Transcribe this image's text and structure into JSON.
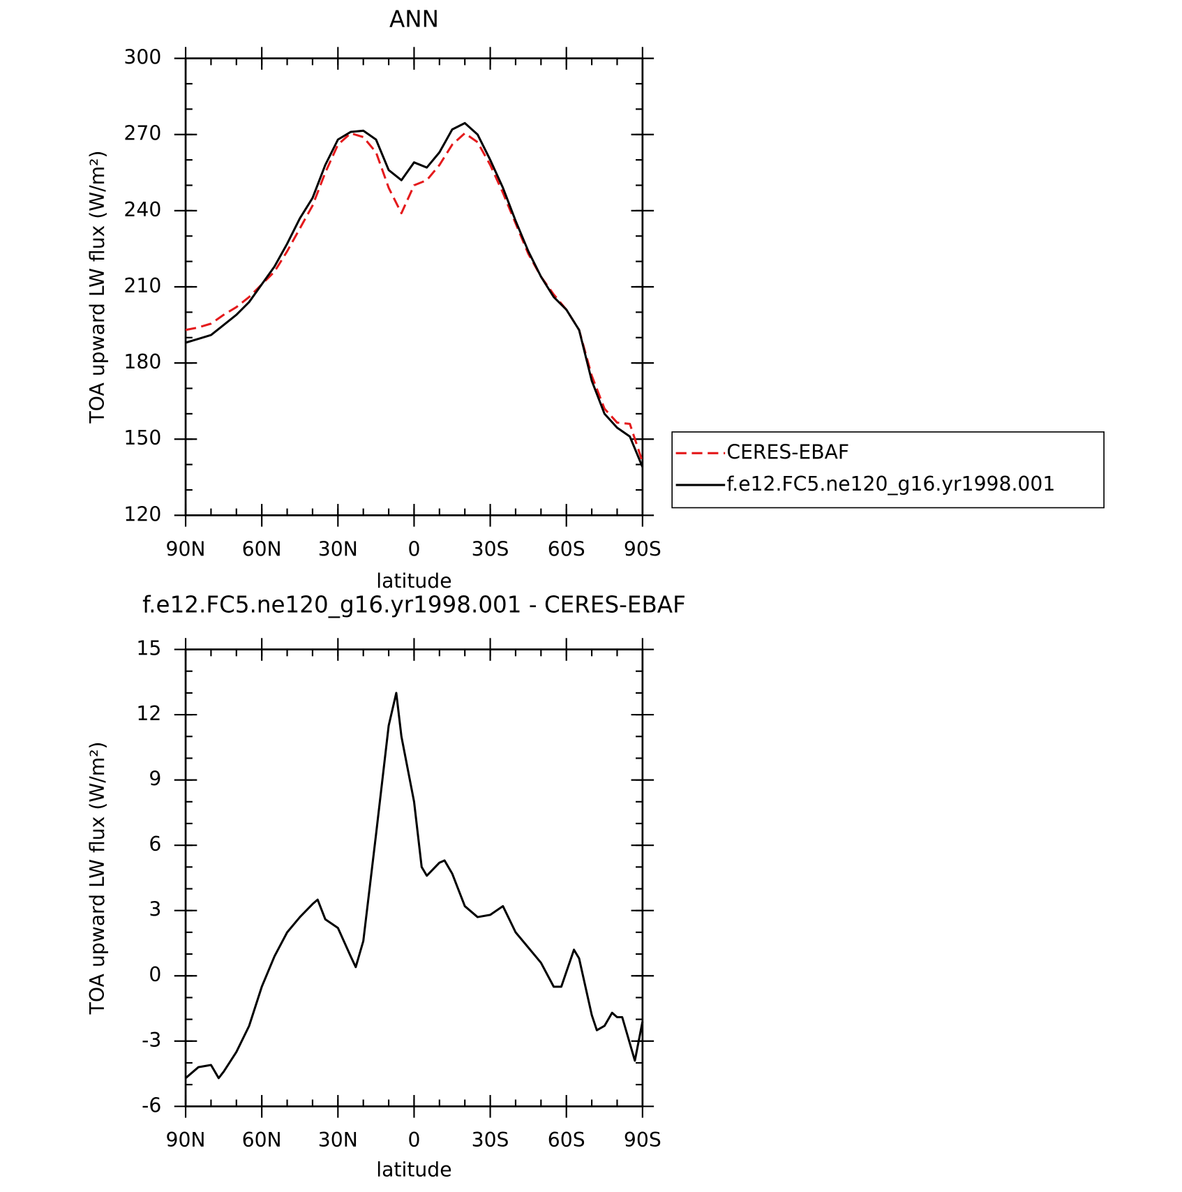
{
  "chart_data": [
    {
      "type": "line",
      "title": "ANN",
      "xlabel": "latitude",
      "ylabel": "TOA upward LW flux (W/m²)",
      "x": [
        90,
        85,
        80,
        75,
        70,
        65,
        60,
        55,
        50,
        45,
        40,
        35,
        30,
        25,
        20,
        15,
        10,
        5,
        0,
        -5,
        -10,
        -15,
        -20,
        -25,
        -30,
        -35,
        -40,
        -45,
        -50,
        -55,
        -60,
        -65,
        -70,
        -75,
        -80,
        -85,
        -90
      ],
      "series": [
        {
          "name": "CERES-EBAF",
          "color": "#e41a1c",
          "style": "dashed",
          "values": [
            193,
            194,
            195.5,
            199,
            202,
            206,
            211,
            216,
            224,
            233,
            242,
            255,
            266,
            270.5,
            269,
            263,
            249,
            239,
            250,
            252,
            258,
            266,
            270.5,
            267,
            258,
            247,
            235,
            223,
            214,
            207,
            201,
            193,
            175,
            162,
            156.5,
            156,
            141
          ]
        },
        {
          "name": "f.e12.FC5.ne120_g16.yr1998.001",
          "color": "#000000",
          "style": "solid",
          "values": [
            188,
            189.5,
            191,
            195,
            199,
            204,
            211,
            218,
            227,
            237,
            245,
            258,
            268,
            271,
            271.5,
            268,
            256,
            252,
            259,
            257,
            263,
            272,
            274.5,
            270,
            260,
            249,
            236,
            224,
            214,
            206,
            201,
            193,
            173,
            160,
            154.5,
            151,
            139
          ]
        }
      ],
      "xlim": [
        90,
        -90
      ],
      "xticks": [
        {
          "value": 90,
          "label": "90N"
        },
        {
          "value": 60,
          "label": "60N"
        },
        {
          "value": 30,
          "label": "30N"
        },
        0,
        {
          "value": -30,
          "label": "30S"
        },
        {
          "value": -60,
          "label": "60S"
        },
        {
          "value": -90,
          "label": "90S"
        }
      ],
      "ylim": [
        120,
        300
      ],
      "yticks": [
        120,
        150,
        180,
        210,
        240,
        270,
        300
      ],
      "legend": "right"
    },
    {
      "type": "line",
      "title": "f.e12.FC5.ne120_g16.yr1998.001 - CERES-EBAF",
      "xlabel": "latitude",
      "ylabel": "TOA upward LW flux (W/m²)",
      "x": [
        90,
        85,
        80,
        77,
        75,
        70,
        65,
        60,
        55,
        50,
        45,
        40,
        38,
        35,
        30,
        25,
        23,
        20,
        15,
        10,
        7,
        5,
        0,
        -3,
        -5,
        -10,
        -12,
        -15,
        -20,
        -25,
        -30,
        -35,
        -40,
        -45,
        -50,
        -55,
        -58,
        -63,
        -65,
        -70,
        -72,
        -75,
        -78,
        -80,
        -82,
        -87,
        -90
      ],
      "series": [
        {
          "name": "f.e12.FC5.ne120_g16.yr1998.001 - CERES-EBAF",
          "color": "#000000",
          "style": "solid",
          "values": [
            -4.7,
            -4.2,
            -4.1,
            -4.7,
            -4.4,
            -3.5,
            -2.3,
            -0.5,
            0.9,
            2.0,
            2.7,
            3.3,
            3.5,
            2.6,
            2.2,
            0.9,
            0.4,
            1.6,
            6.5,
            11.5,
            13,
            11,
            8,
            5,
            4.6,
            5.2,
            5.3,
            4.7,
            3.2,
            2.7,
            2.8,
            3.2,
            2.0,
            1.3,
            0.6,
            -0.5,
            -0.5,
            1.2,
            0.8,
            -1.8,
            -2.5,
            -2.3,
            -1.7,
            -1.9,
            -1.9,
            -3.9,
            -2.1
          ]
        }
      ],
      "xlim": [
        90,
        -90
      ],
      "xticks": [
        {
          "value": 90,
          "label": "90N"
        },
        {
          "value": 60,
          "label": "60N"
        },
        {
          "value": 30,
          "label": "30N"
        },
        0,
        {
          "value": -30,
          "label": "30S"
        },
        {
          "value": -60,
          "label": "60S"
        },
        {
          "value": -90,
          "label": "90S"
        }
      ],
      "ylim": [
        -6,
        15
      ],
      "yticks": [
        -6,
        -3,
        0,
        3,
        6,
        9,
        12,
        15
      ]
    }
  ]
}
